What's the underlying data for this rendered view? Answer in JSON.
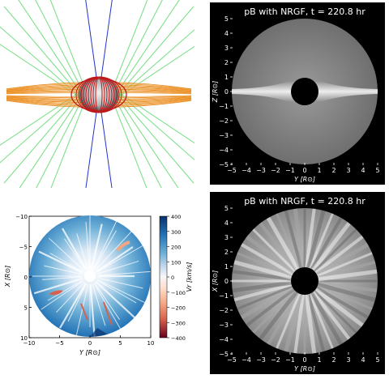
{
  "figure": {
    "panels": [
      {
        "id": "field-lines",
        "kind": "3d-rendering",
        "legend": []
      },
      {
        "id": "pb-equatorial",
        "title": "pB with NRGF, t = 220.8 hr",
        "xlabel": "Y [R⊙]",
        "ylabel": "Z [R⊙]",
        "x_ticks": [
          "−5",
          "−4",
          "−3",
          "−2",
          "−1",
          "0",
          "1",
          "2",
          "3",
          "4",
          "5"
        ],
        "y_ticks": [
          "−5",
          "−4",
          "−3",
          "−2",
          "−1",
          "0",
          "1",
          "2",
          "3",
          "4",
          "5"
        ]
      },
      {
        "id": "vr-map",
        "xlabel": "Y [R⊙]",
        "ylabel": "X [R⊙]",
        "x_ticks": [
          "−10",
          "−5",
          "0",
          "5",
          "10"
        ],
        "y_ticks": [
          "−10",
          "−5",
          "0",
          "5",
          "10"
        ],
        "colorbar": {
          "label": "Vr [km/s]",
          "ticks": [
            "400",
            "300",
            "200",
            "100",
            "0",
            "−100",
            "−200",
            "−300",
            "−400"
          ],
          "colors": [
            "#08306b",
            "#2171b5",
            "#6baed6",
            "#c6dbef",
            "#f7f7f7",
            "#fddbc7",
            "#f4a582",
            "#d6604d",
            "#67001f"
          ]
        }
      },
      {
        "id": "pb-polar",
        "title": "pB with NRGF, t = 220.8 hr",
        "xlabel": "Y [R⊙]",
        "ylabel": "X [R⊙]",
        "x_ticks": [
          "−5",
          "−4",
          "−3",
          "−2",
          "−1",
          "0",
          "1",
          "2",
          "3",
          "4",
          "5"
        ],
        "y_ticks": [
          "−5",
          "−4",
          "−3",
          "−2",
          "−1",
          "0",
          "1",
          "2",
          "3",
          "4",
          "5"
        ]
      }
    ]
  }
}
